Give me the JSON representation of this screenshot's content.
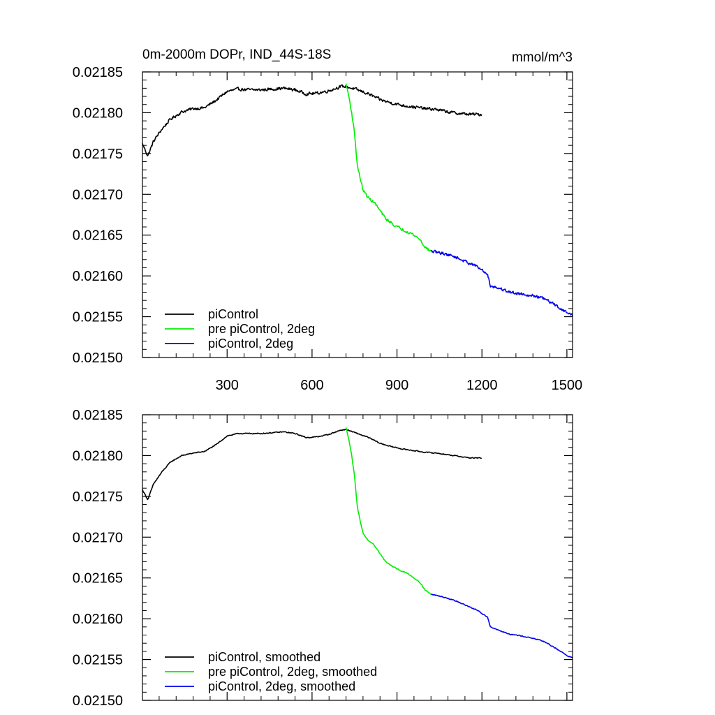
{
  "chart_data": [
    {
      "type": "line",
      "title": "0m-2000m DOPr, IND_44S-18S",
      "units": "mmol/m^3",
      "xlim": [
        1,
        1520
      ],
      "ylim": [
        0.0215,
        0.02185
      ],
      "x_ticks": [
        300,
        600,
        900,
        1200,
        1500
      ],
      "x_tick_labels": [
        "300",
        "600",
        "900",
        "1200",
        "1500"
      ],
      "y_ticks": [
        0.0215,
        0.02155,
        0.0216,
        0.02165,
        0.0217,
        0.02175,
        0.0218,
        0.02185
      ],
      "y_tick_labels": [
        "0.02150",
        "0.02155",
        "0.02160",
        "0.02165",
        "0.02170",
        "0.02175",
        "0.02180",
        "0.02185"
      ],
      "grid": false,
      "legend_position": "bottom-left",
      "noise_amplitude": 2.5e-06,
      "series": [
        {
          "name": "piControl",
          "color": "#000000",
          "x": [
            1,
            20,
            40,
            70,
            100,
            140,
            180,
            220,
            260,
            300,
            340,
            380,
            420,
            460,
            500,
            540,
            580,
            620,
            660,
            700,
            720,
            760,
            800,
            840,
            880,
            920,
            960,
            1000,
            1040,
            1080,
            1120,
            1160,
            1200
          ],
          "y": [
            0.021762,
            0.021747,
            0.021765,
            0.02178,
            0.021792,
            0.021801,
            0.021805,
            0.021806,
            0.021815,
            0.021826,
            0.021829,
            0.021828,
            0.021828,
            0.021829,
            0.02183,
            0.021828,
            0.021823,
            0.021824,
            0.021827,
            0.021832,
            0.021832,
            0.021828,
            0.021823,
            0.021816,
            0.021812,
            0.021809,
            0.021807,
            0.021805,
            0.021804,
            0.021801,
            0.021799,
            0.021798,
            0.021798
          ]
        },
        {
          "name": "pre piControl, 2deg",
          "color": "#00ee00",
          "x": [
            720,
            730,
            740,
            750,
            760,
            770,
            780,
            790,
            800,
            820,
            840,
            860,
            880,
            900,
            920,
            940,
            960,
            980,
            1000,
            1020
          ],
          "y": [
            0.021835,
            0.02182,
            0.0218,
            0.021775,
            0.021735,
            0.02172,
            0.021705,
            0.0217,
            0.021695,
            0.02169,
            0.02168,
            0.02167,
            0.021665,
            0.02166,
            0.021657,
            0.021654,
            0.02165,
            0.021645,
            0.021635,
            0.02163
          ]
        },
        {
          "name": "piControl, 2deg",
          "color": "#0000ee",
          "x": [
            1020,
            1060,
            1100,
            1140,
            1180,
            1220,
            1230,
            1260,
            1300,
            1340,
            1380,
            1420,
            1460,
            1500,
            1520
          ],
          "y": [
            0.02163,
            0.021628,
            0.021624,
            0.021618,
            0.021612,
            0.021602,
            0.021588,
            0.021585,
            0.02158,
            0.021578,
            0.021576,
            0.021572,
            0.021564,
            0.021555,
            0.021552
          ]
        }
      ]
    },
    {
      "type": "line",
      "xlim": [
        1,
        1520
      ],
      "ylim": [
        0.0215,
        0.02185
      ],
      "x_ticks": [
        300,
        600,
        900,
        1200,
        1500
      ],
      "y_ticks": [
        0.0215,
        0.02155,
        0.0216,
        0.02165,
        0.0217,
        0.02175,
        0.0218,
        0.02185
      ],
      "y_tick_labels": [
        "0.02150",
        "0.02155",
        "0.02160",
        "0.02165",
        "0.02170",
        "0.02175",
        "0.02180",
        "0.02185"
      ],
      "grid": false,
      "legend_position": "bottom-left",
      "noise_amplitude": 8e-07,
      "series": [
        {
          "name": "piControl, smoothed",
          "color": "#000000",
          "x": [
            1,
            20,
            40,
            70,
            100,
            140,
            180,
            220,
            260,
            300,
            340,
            380,
            420,
            460,
            500,
            540,
            580,
            620,
            660,
            700,
            720,
            760,
            800,
            840,
            880,
            920,
            960,
            1000,
            1040,
            1080,
            1120,
            1160,
            1200
          ],
          "y": [
            0.021758,
            0.021746,
            0.021765,
            0.02178,
            0.021792,
            0.0218,
            0.021803,
            0.021805,
            0.021813,
            0.021824,
            0.021827,
            0.021827,
            0.021827,
            0.021828,
            0.021829,
            0.021827,
            0.021822,
            0.021823,
            0.021826,
            0.021831,
            0.021832,
            0.021827,
            0.021822,
            0.021815,
            0.021811,
            0.021808,
            0.021806,
            0.021804,
            0.021803,
            0.021801,
            0.021799,
            0.021797,
            0.021797
          ]
        },
        {
          "name": "pre piControl, 2deg, smoothed",
          "color": "#00ee00",
          "x": [
            720,
            730,
            740,
            750,
            760,
            770,
            780,
            790,
            800,
            820,
            840,
            860,
            880,
            900,
            920,
            940,
            960,
            980,
            1000,
            1020
          ],
          "y": [
            0.021834,
            0.02182,
            0.0218,
            0.021775,
            0.021737,
            0.02172,
            0.021705,
            0.0217,
            0.021695,
            0.02169,
            0.02168,
            0.02167,
            0.021665,
            0.021661,
            0.021658,
            0.021655,
            0.02165,
            0.021645,
            0.021635,
            0.02163
          ]
        },
        {
          "name": "piControl, 2deg, smoothed",
          "color": "#0000ee",
          "x": [
            1020,
            1060,
            1100,
            1140,
            1180,
            1220,
            1230,
            1260,
            1300,
            1340,
            1380,
            1420,
            1460,
            1500,
            1520
          ],
          "y": [
            0.02163,
            0.021627,
            0.021623,
            0.021617,
            0.021611,
            0.021602,
            0.02159,
            0.021586,
            0.021581,
            0.021579,
            0.021576,
            0.021572,
            0.021564,
            0.021555,
            0.021552
          ]
        }
      ]
    }
  ]
}
